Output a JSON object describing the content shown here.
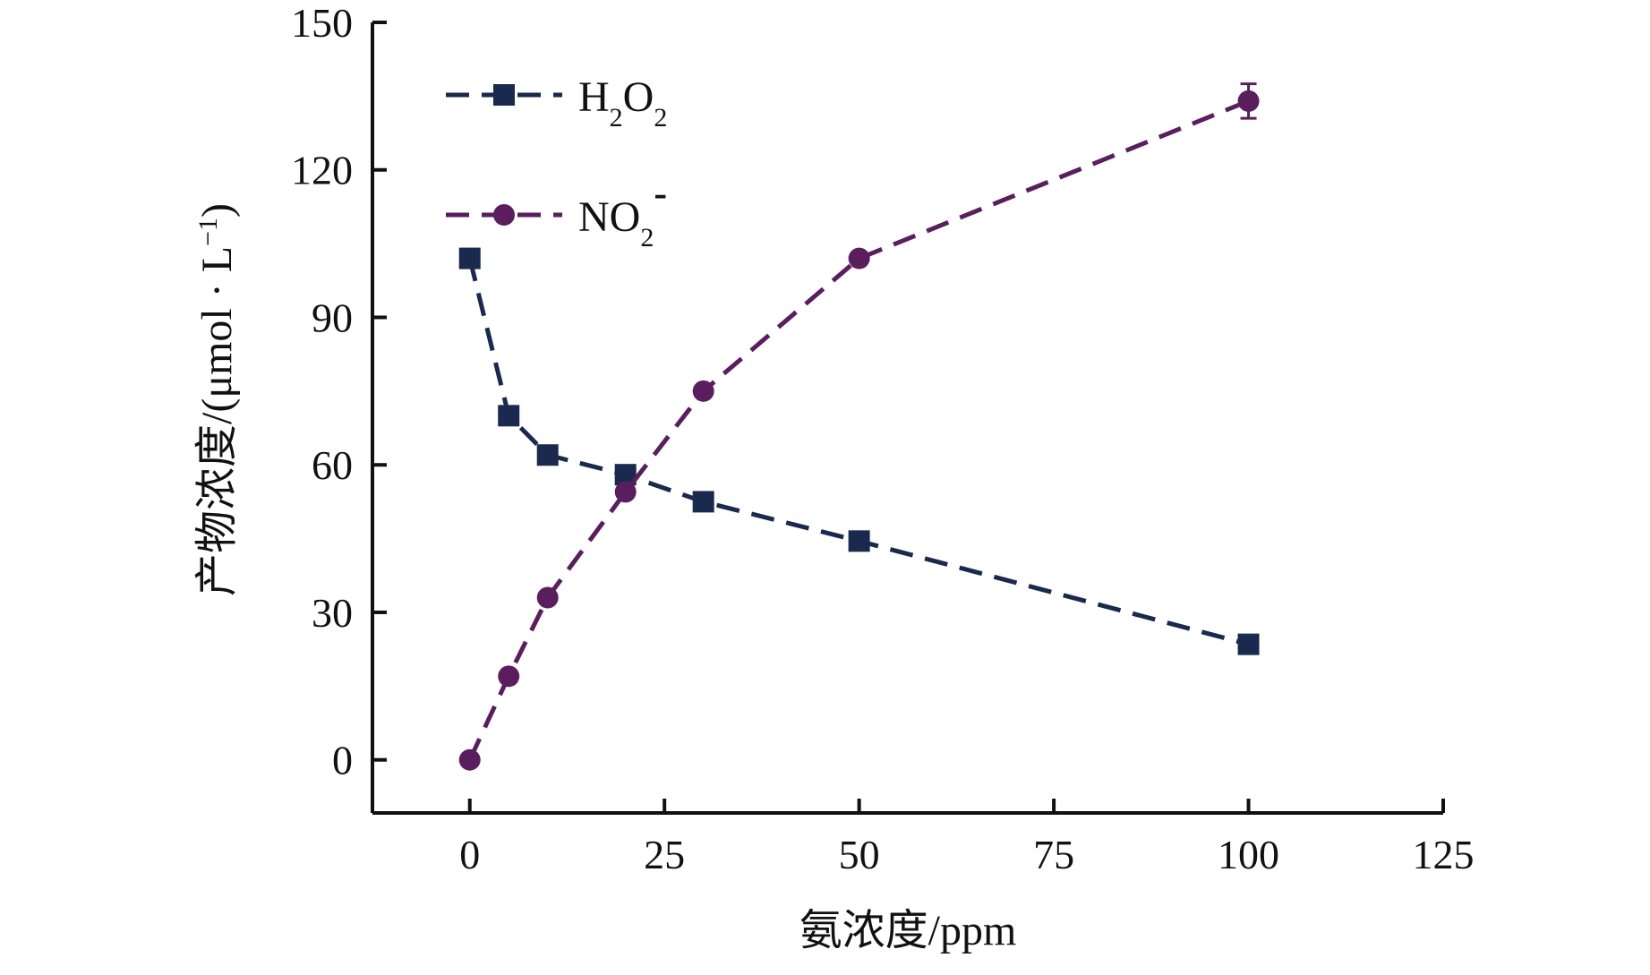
{
  "chart_data": {
    "type": "line",
    "xlabel": "氨浓度/ppm",
    "ylabel_main": "产物浓度/(μmol · L",
    "ylabel_sup": "−1",
    "ylabel_close": ")",
    "xlim": [
      -12.5,
      125
    ],
    "ylim": [
      -10.8,
      150
    ],
    "x_ticks": [
      0,
      25,
      50,
      75,
      100,
      125
    ],
    "y_ticks": [
      0,
      30,
      60,
      90,
      120,
      150
    ],
    "grid": false,
    "legend_position": "top-left",
    "series": [
      {
        "name": "H2O2",
        "legend_main_1": "H",
        "legend_sub_1": "2",
        "legend_main_2": "O",
        "legend_sub_2": "2",
        "marker": "square",
        "color": "#1a2a4e",
        "line_style": "dashed",
        "x": [
          0,
          5,
          10,
          20,
          30,
          50,
          100
        ],
        "y": [
          102,
          70,
          62,
          58,
          52.5,
          44.5,
          23.5
        ]
      },
      {
        "name": "NO2-",
        "legend_main_1": "NO",
        "legend_sub_1": "2",
        "legend_sup": "-",
        "marker": "circle",
        "color": "#5a1e5e",
        "line_style": "dashed",
        "x": [
          0,
          5,
          10,
          20,
          30,
          50,
          100
        ],
        "y": [
          0,
          17,
          33,
          54.5,
          75,
          102,
          134
        ],
        "error_bars": [
          0,
          0,
          0,
          0,
          0,
          0,
          3.5
        ]
      }
    ]
  }
}
